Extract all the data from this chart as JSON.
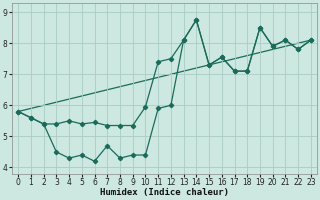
{
  "title": "",
  "xlabel": "Humidex (Indice chaleur)",
  "bg_color": "#cce8e0",
  "grid_color": "#aaccC4",
  "line_color": "#1a6b5a",
  "xlim": [
    -0.5,
    23.5
  ],
  "ylim": [
    3.8,
    9.3
  ],
  "xticks": [
    0,
    1,
    2,
    3,
    4,
    5,
    6,
    7,
    8,
    9,
    10,
    11,
    12,
    13,
    14,
    15,
    16,
    17,
    18,
    19,
    20,
    21,
    22,
    23
  ],
  "yticks": [
    4,
    5,
    6,
    7,
    8,
    9
  ],
  "series1_x": [
    0,
    1,
    2,
    3,
    4,
    5,
    6,
    7,
    8,
    9,
    10,
    11,
    12,
    13,
    14,
    15,
    16,
    17,
    18,
    19,
    20,
    21,
    22,
    23
  ],
  "series1_y": [
    5.8,
    5.6,
    5.4,
    5.4,
    5.5,
    5.4,
    5.45,
    5.35,
    5.35,
    5.35,
    5.95,
    7.4,
    7.5,
    8.1,
    8.75,
    7.3,
    7.55,
    7.1,
    7.1,
    8.5,
    7.9,
    8.1,
    7.8,
    8.1
  ],
  "series2_x": [
    0,
    1,
    2,
    3,
    4,
    5,
    6,
    7,
    8,
    9,
    10,
    11,
    12,
    13,
    14,
    15,
    16,
    17,
    18,
    19,
    20,
    21,
    22,
    23
  ],
  "series2_y": [
    5.8,
    5.6,
    5.4,
    4.5,
    4.3,
    4.4,
    4.2,
    4.7,
    4.3,
    4.4,
    4.4,
    5.9,
    6.0,
    8.1,
    8.75,
    7.3,
    7.55,
    7.1,
    7.1,
    8.5,
    7.9,
    8.1,
    7.8,
    8.1
  ],
  "series3_x": [
    0,
    23
  ],
  "series3_y": [
    5.8,
    8.1
  ]
}
